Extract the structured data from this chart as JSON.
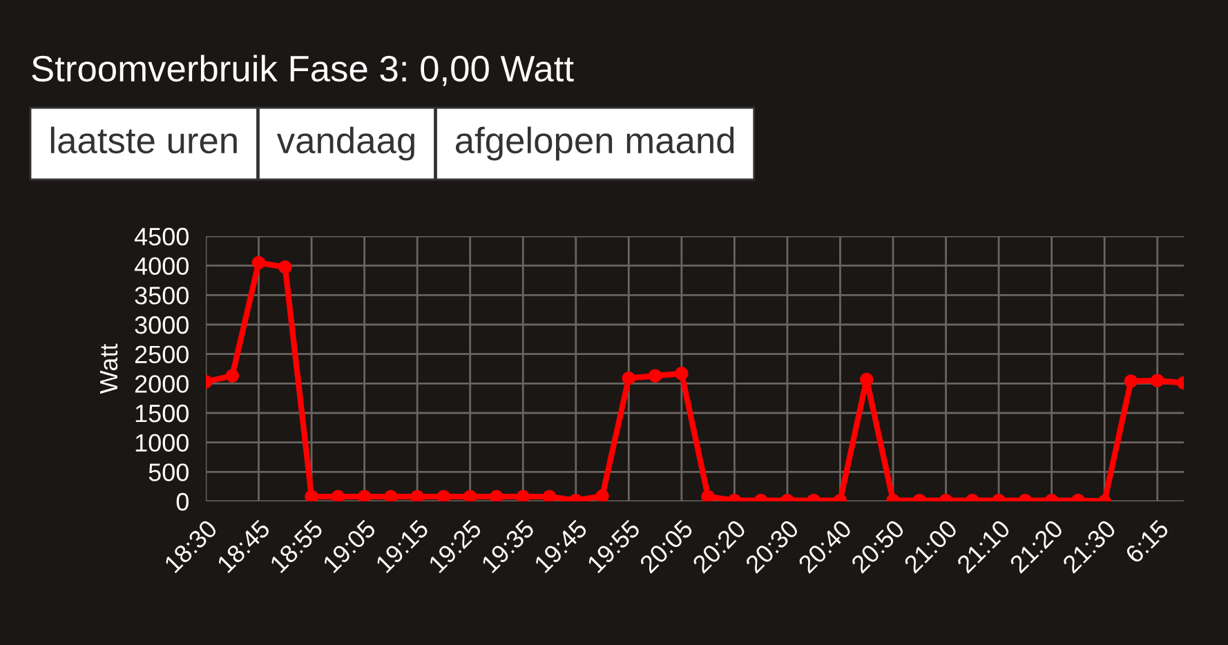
{
  "chart_data": {
    "type": "line",
    "title": "Stroomverbruik Fase 3: 0,00 Watt",
    "annotations": [
      "laatste uren",
      "vandaag",
      "afgelopen maand"
    ],
    "ylabel": "Watt",
    "categories": [
      "18:30",
      null,
      "18:45",
      null,
      "18:55",
      null,
      "19:05",
      null,
      "19:15",
      null,
      "19:25",
      null,
      "19:35",
      null,
      "19:45",
      null,
      "19:55",
      null,
      "20:05",
      null,
      "20:20",
      null,
      "20:30",
      null,
      "20:40",
      null,
      "20:50",
      null,
      "21:00",
      null,
      "21:10",
      null,
      "21:20",
      null,
      "21:30",
      null,
      "6:15",
      null
    ],
    "series": [
      {
        "color": "#ff0000",
        "values": [
          2030,
          2130,
          4050,
          3975,
          80,
          80,
          80,
          80,
          80,
          80,
          80,
          80,
          80,
          80,
          15,
          90,
          2090,
          2130,
          2170,
          80,
          15,
          15,
          15,
          15,
          15,
          2070,
          15,
          15,
          15,
          15,
          15,
          15,
          15,
          15,
          0,
          2040,
          2050,
          2010
        ]
      }
    ],
    "ylim": [
      0,
      4500
    ],
    "yticks": [
      0,
      500,
      1000,
      1500,
      2000,
      2500,
      3000,
      3500,
      4000,
      4500
    ],
    "grid": true,
    "marker": "circle",
    "line_style": "solid",
    "legend": false
  }
}
